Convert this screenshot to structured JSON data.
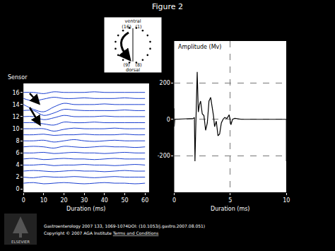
{
  "title": "Figure 2",
  "chart_data": [
    {
      "type": "line",
      "y_label": "Sensor",
      "x_label": "Duration (ms)",
      "color": "#1a3fd0",
      "x": [
        0,
        5,
        10,
        15,
        20,
        25,
        30,
        35,
        40,
        45,
        50,
        55,
        60
      ],
      "series": [
        {
          "values": [
            1,
            1.1,
            0.9,
            1,
            1.1,
            1,
            0.9,
            1,
            1.1,
            1,
            1,
            0.9,
            1
          ]
        },
        {
          "values": [
            2,
            1.9,
            2.1,
            2,
            2,
            2.1,
            2,
            1.9,
            2,
            2.1,
            2,
            2,
            2
          ]
        },
        {
          "values": [
            3,
            3.1,
            3,
            2.9,
            3,
            3.1,
            3,
            3,
            2.9,
            3,
            3.1,
            3,
            3
          ]
        },
        {
          "values": [
            4,
            4,
            4.1,
            3.9,
            4,
            4,
            4.1,
            4,
            4,
            3.9,
            4,
            4.1,
            4
          ]
        },
        {
          "values": [
            5,
            5.1,
            4.9,
            5,
            5.1,
            5,
            5,
            4.9,
            5,
            5.1,
            5,
            5,
            5
          ]
        },
        {
          "values": [
            6,
            6,
            6.1,
            5.9,
            6,
            6.1,
            6,
            6,
            5.9,
            6,
            6.1,
            6,
            6
          ]
        },
        {
          "values": [
            7,
            7.1,
            7,
            6.8,
            7.1,
            7,
            6.9,
            7,
            7.1,
            7,
            7,
            6.9,
            7
          ]
        },
        {
          "values": [
            8,
            8,
            8.1,
            7.8,
            8,
            8.2,
            8,
            7.9,
            8,
            8.1,
            8,
            8,
            8
          ]
        },
        {
          "values": [
            9,
            9,
            9.1,
            8.9,
            9,
            9,
            9.1,
            9,
            9,
            9,
            9.1,
            9,
            9
          ]
        },
        {
          "values": [
            10,
            10,
            10,
            9.6,
            9.9,
            10.1,
            10,
            10,
            10,
            10.1,
            10,
            10,
            10
          ]
        },
        {
          "values": [
            11,
            11,
            10.8,
            10.6,
            11.1,
            11,
            11,
            11.1,
            11,
            11,
            11,
            11,
            11
          ]
        },
        {
          "values": [
            12,
            12,
            11.5,
            11.8,
            12.2,
            12,
            12,
            12,
            12.1,
            12,
            12,
            12,
            12
          ]
        },
        {
          "values": [
            13,
            13,
            12.2,
            12.6,
            13.2,
            13.1,
            13,
            13,
            13,
            13,
            13.1,
            13,
            13
          ]
        },
        {
          "values": [
            14,
            13.2,
            12.8,
            13.6,
            14.2,
            14,
            14,
            14,
            14.1,
            14,
            14,
            14,
            14
          ]
        },
        {
          "values": [
            15,
            14.6,
            14.9,
            15.2,
            15,
            15,
            15.1,
            15,
            15,
            15,
            15.1,
            15,
            15
          ]
        },
        {
          "values": [
            16,
            16,
            15.8,
            16.1,
            16,
            16,
            16,
            16.1,
            16,
            16,
            16,
            16,
            16
          ]
        }
      ],
      "xlim": [
        0,
        62
      ],
      "xticks": [
        0,
        10,
        20,
        30,
        40,
        50,
        60
      ],
      "ylim": [
        -0.5,
        17.5
      ],
      "yticks": [
        0,
        2,
        4,
        6,
        8,
        10,
        12,
        14,
        16
      ],
      "grid": false
    },
    {
      "type": "line",
      "y_label": "Amplitude (Mv)",
      "x_label": "Duration (ms)",
      "color": "#000000",
      "x": [
        0,
        0,
        0,
        0.05,
        1.7,
        1.8,
        1.85,
        1.95,
        2.05,
        2.15,
        2.25,
        2.35,
        2.5,
        2.65,
        2.8,
        2.95,
        3.1,
        3.25,
        3.4,
        3.5,
        3.6,
        3.75,
        3.9,
        4.05,
        4.2,
        4.35,
        4.5,
        4.7,
        4.9,
        5.05,
        5.2,
        5.4,
        6,
        8,
        9.9,
        10,
        10
      ],
      "values": [
        0,
        60,
        -40,
        0,
        5,
        10,
        -230,
        20,
        260,
        40,
        80,
        100,
        30,
        20,
        -60,
        -20,
        100,
        120,
        60,
        20,
        -40,
        -10,
        -90,
        -80,
        -20,
        0,
        10,
        5,
        25,
        -30,
        0,
        5,
        0,
        0,
        0,
        0,
        -230
      ],
      "xlim": [
        0,
        10
      ],
      "xticks": [
        0,
        5,
        10
      ],
      "ylim": [
        -400,
        430
      ],
      "yticks": [
        -200,
        0,
        200
      ],
      "grid": true
    }
  ],
  "schematic": {
    "top_label": "ventral",
    "top_numbers": [
      "(16)",
      "(1)"
    ],
    "bottom_numbers": [
      "(9)",
      "(8)"
    ],
    "bottom_label": "dorsal"
  },
  "footer": {
    "citation": "Gastroenterology 2007 133, 1069-1074DOI: (10.1053/j.gastro.2007.08.051)",
    "copyright": "Copyright © 2007 AGA Institute",
    "link": "Terms and Conditions",
    "logo_text": "ELSEVIER"
  }
}
